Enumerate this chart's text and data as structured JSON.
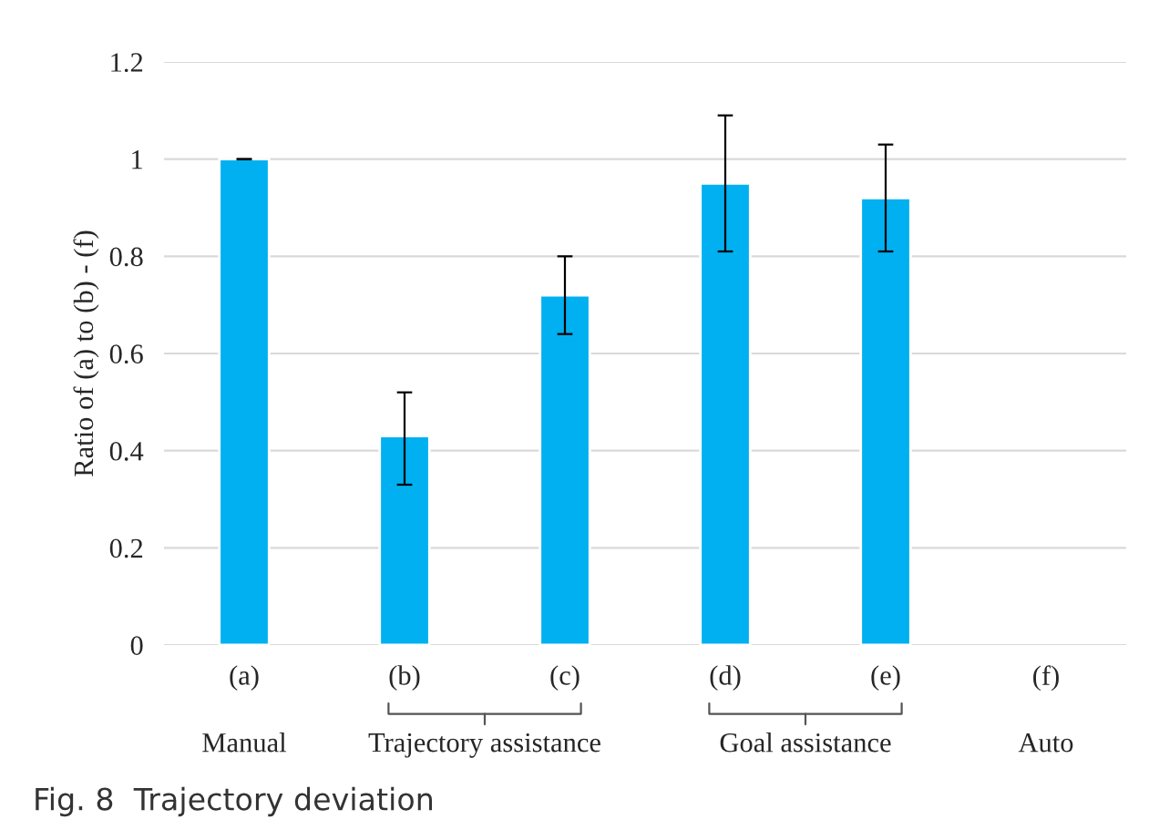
{
  "chart_data": {
    "type": "bar",
    "ylabel": "Ratio of (a) to (b) - (f)",
    "categories": [
      "(a)",
      "(b)",
      "(c)",
      "(d)",
      "(e)",
      "(f)"
    ],
    "values": [
      1.0,
      0.43,
      0.72,
      0.95,
      0.92,
      null
    ],
    "errors": [
      0,
      [
        0.33,
        0.52
      ],
      [
        0.64,
        0.8
      ],
      [
        0.81,
        1.09
      ],
      [
        0.81,
        1.03
      ],
      null
    ],
    "color": "#00b0f0",
    "ylim": [
      0,
      1.2
    ],
    "yticks": [
      0,
      0.2,
      0.4,
      0.6,
      0.8,
      1,
      1.2
    ],
    "grid": "y",
    "annotations": [
      "Manual",
      "Trajectory assistance",
      "Goal assistance",
      "Auto",
      "Fig. 8  Trajectory deviation"
    ]
  }
}
